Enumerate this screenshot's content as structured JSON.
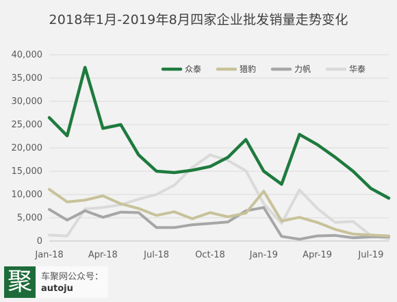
{
  "chart_data": {
    "type": "line",
    "title": "2018年1月-2019年8月四家企业批发销量走势变化",
    "xlabel": "",
    "ylabel": "",
    "ylim": [
      0,
      40000
    ],
    "yticks": [
      0,
      5000,
      10000,
      15000,
      20000,
      25000,
      30000,
      35000,
      40000
    ],
    "ytick_labels": [
      "0",
      "5,000",
      "10,000",
      "15,000",
      "20,000",
      "25,000",
      "30,000",
      "35,000",
      "40,000"
    ],
    "x": [
      "2018-01",
      "2018-02",
      "2018-03",
      "2018-04",
      "2018-05",
      "2018-06",
      "2018-07",
      "2018-08",
      "2018-09",
      "2018-10",
      "2018-11",
      "2018-12",
      "2019-01",
      "2019-02",
      "2019-03",
      "2019-04",
      "2019-05",
      "2019-06",
      "2019-07",
      "2019-08"
    ],
    "xtick_labels": [
      {
        "index": 0,
        "label": "Jan-18"
      },
      {
        "index": 3,
        "label": "Apr-18"
      },
      {
        "index": 6,
        "label": "Jul-18"
      },
      {
        "index": 9,
        "label": "Oct-18"
      },
      {
        "index": 12,
        "label": "Jan-19"
      },
      {
        "index": 15,
        "label": "Apr-19"
      },
      {
        "index": 18,
        "label": "Jul-19"
      }
    ],
    "grid": true,
    "legend_position": "top-right",
    "series": [
      {
        "name": "众泰",
        "color": "#1e7a3e",
        "width": 4.5,
        "values": [
          26500,
          22600,
          37300,
          24200,
          25000,
          18500,
          15000,
          14700,
          15200,
          16000,
          18000,
          21800,
          15000,
          12200,
          22900,
          20700,
          18000,
          15000,
          11300,
          9200
        ]
      },
      {
        "name": "猎豹",
        "color": "#c8c29a",
        "width": 4,
        "values": [
          11100,
          8400,
          8800,
          9700,
          8000,
          7000,
          5500,
          6300,
          4800,
          6100,
          5200,
          6000,
          10700,
          4300,
          5100,
          4000,
          2500,
          1500,
          1300,
          1100
        ]
      },
      {
        "name": "力帆",
        "color": "#a6a6a6",
        "width": 4,
        "values": [
          6800,
          4500,
          6500,
          5100,
          6200,
          6100,
          2900,
          2900,
          3500,
          3800,
          4100,
          6500,
          7200,
          1000,
          400,
          1100,
          1200,
          700,
          900,
          900
        ]
      },
      {
        "name": "华泰",
        "color": "#dadada",
        "width": 4,
        "values": [
          1300,
          1100,
          6900,
          7200,
          7800,
          9000,
          10000,
          12000,
          15800,
          18500,
          17300,
          15100,
          8000,
          3800,
          11000,
          7000,
          4000,
          4200,
          1200,
          500
        ]
      }
    ]
  },
  "watermark": {
    "logo_char": "聚",
    "line1": "车聚网公众号：",
    "line2": "autoju"
  }
}
